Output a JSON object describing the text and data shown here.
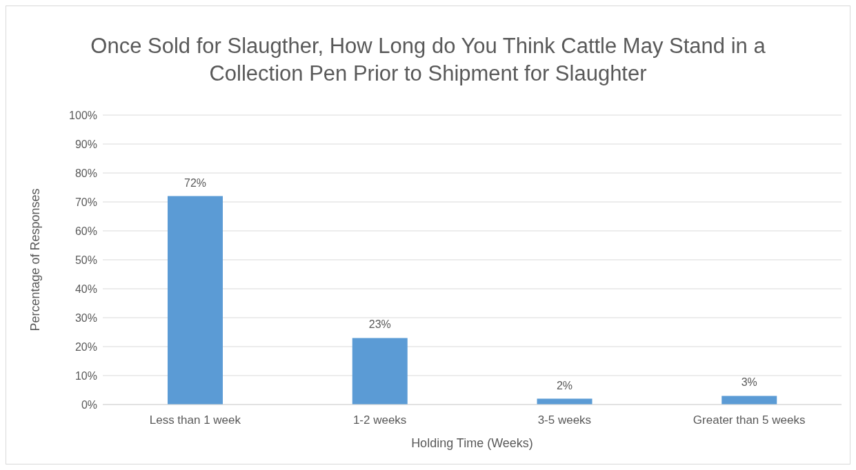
{
  "chart_data": {
    "type": "bar",
    "title": "Once Sold for Slaugther, How Long do You Think Cattle May Stand in a Collection Pen Prior to Shipment for Slaughter",
    "xlabel": "Holding Time (Weeks)",
    "ylabel": "Percentage of Responses",
    "categories": [
      "Less than 1 week",
      "1-2 weeks",
      "3-5 weeks",
      "Greater than 5 weeks"
    ],
    "values": [
      72,
      23,
      2,
      3
    ],
    "value_labels": [
      "72%",
      "23%",
      "2%",
      "3%"
    ],
    "color": "#5b9bd5",
    "ylim": [
      0,
      100
    ],
    "yticks": [
      {
        "value": 0,
        "label": "0%"
      },
      {
        "value": 10,
        "label": "10%"
      },
      {
        "value": 20,
        "label": "20%"
      },
      {
        "value": 30,
        "label": "30%"
      },
      {
        "value": 40,
        "label": "40%"
      },
      {
        "value": 50,
        "label": "50%"
      },
      {
        "value": 60,
        "label": "60%"
      },
      {
        "value": 70,
        "label": "70%"
      },
      {
        "value": 80,
        "label": "80%"
      },
      {
        "value": 90,
        "label": "90%"
      },
      {
        "value": 100,
        "label": "100%"
      }
    ],
    "grid": "y",
    "legend": false
  }
}
